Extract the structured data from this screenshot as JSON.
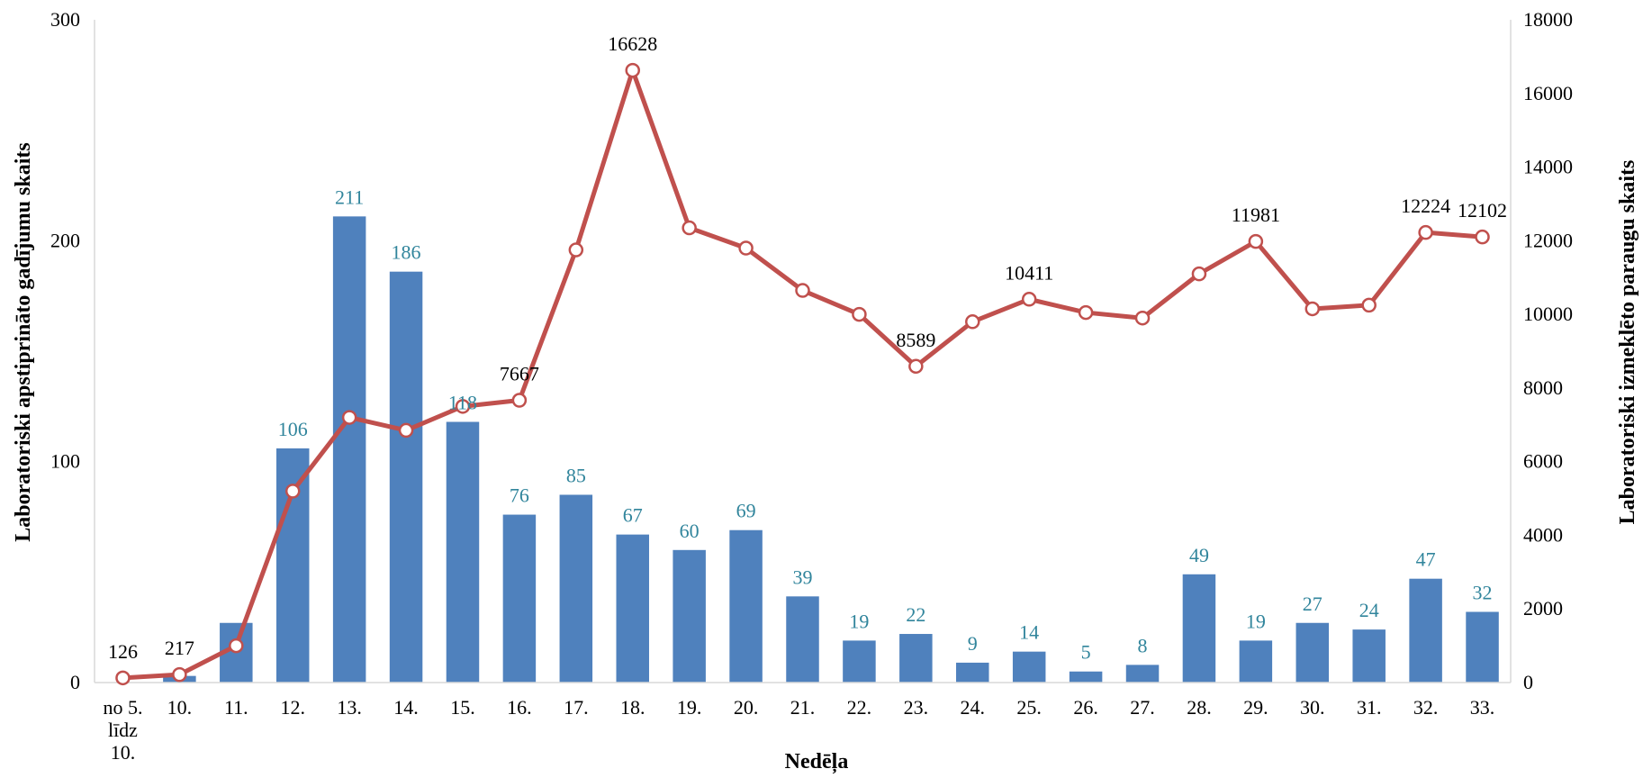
{
  "chart_data": {
    "type": "bar",
    "categories": [
      "no 5. līdz 10.",
      "10.",
      "11.",
      "12.",
      "13.",
      "14.",
      "15.",
      "16.",
      "17.",
      "18.",
      "19.",
      "20.",
      "21.",
      "22.",
      "23.",
      "24.",
      "25.",
      "26.",
      "27.",
      "28.",
      "29.",
      "30.",
      "31.",
      "32.",
      "33."
    ],
    "category_lines": [
      [
        "no 5.",
        "līdz",
        "10."
      ],
      [
        "10."
      ],
      [
        "11."
      ],
      [
        "12."
      ],
      [
        "13."
      ],
      [
        "14."
      ],
      [
        "15."
      ],
      [
        "16."
      ],
      [
        "17."
      ],
      [
        "18."
      ],
      [
        "19."
      ],
      [
        "20."
      ],
      [
        "21."
      ],
      [
        "22."
      ],
      [
        "23."
      ],
      [
        "24."
      ],
      [
        "25."
      ],
      [
        "26."
      ],
      [
        "27."
      ],
      [
        "28."
      ],
      [
        "29."
      ],
      [
        "30."
      ],
      [
        "31."
      ],
      [
        "32."
      ],
      [
        "33."
      ]
    ],
    "xlabel": "Nedēļa",
    "ylabel": "Laboratoriski apstiprināto gadījumu skaits",
    "y2label": "Laboratoriski izmeklēto paraugu skaits",
    "ylim": [
      0,
      300
    ],
    "yticks": [
      0,
      100,
      200,
      300
    ],
    "y2lim": [
      0,
      18000
    ],
    "y2ticks": [
      0,
      2000,
      4000,
      6000,
      8000,
      10000,
      12000,
      14000,
      16000,
      18000
    ],
    "grid": false,
    "legend": "none",
    "series": [
      {
        "type": "bar",
        "axis": "left",
        "color": "#4f81bd",
        "label_color": "#31859c",
        "values": [
          0,
          3,
          27,
          106,
          211,
          186,
          118,
          76,
          85,
          67,
          60,
          69,
          39,
          19,
          22,
          9,
          14,
          5,
          8,
          49,
          19,
          27,
          24,
          47,
          32
        ],
        "data_labels": [
          "",
          "",
          "",
          "106",
          "211",
          "186",
          "118",
          "76",
          "85",
          "67",
          "60",
          "69",
          "39",
          "19",
          "22",
          "9",
          "14",
          "5",
          "8",
          "49",
          "19",
          "27",
          "24",
          "47",
          "32"
        ]
      },
      {
        "type": "line",
        "axis": "right",
        "color": "#c0504d",
        "values": [
          126,
          217,
          1000,
          5200,
          7200,
          6850,
          7500,
          7667,
          11750,
          16628,
          12350,
          11800,
          10650,
          10000,
          8589,
          9800,
          10411,
          10050,
          9900,
          11100,
          11981,
          10150,
          10250,
          12224,
          12102
        ],
        "data_labels": [
          "126",
          "217",
          "",
          "",
          "",
          "",
          "",
          "7667",
          "",
          "16628",
          "",
          "",
          "",
          "",
          "8589",
          "",
          "10411",
          "",
          "",
          "",
          "11981",
          "",
          "",
          "12224",
          "12102"
        ]
      }
    ]
  }
}
